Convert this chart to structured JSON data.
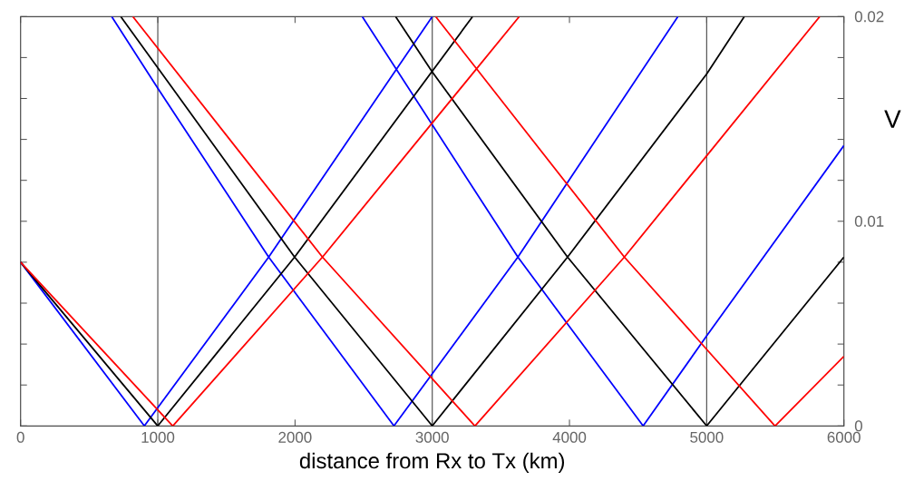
{
  "chart_data": {
    "type": "line",
    "xlabel": "distance from Rx to Tx (km)",
    "ylabel": "V",
    "xlim": [
      0,
      6000
    ],
    "ylim": [
      0,
      0.02
    ],
    "xticks": [
      0,
      1000,
      2000,
      3000,
      4000,
      5000,
      6000
    ],
    "yticks": [
      0,
      {
        "value": 0.002,
        "label": null
      },
      {
        "value": 0.004,
        "label": null
      },
      {
        "value": 0.006,
        "label": null
      },
      {
        "value": 0.008,
        "label": null
      },
      0.01,
      {
        "value": 0.012,
        "label": null
      },
      {
        "value": 0.014,
        "label": null
      },
      {
        "value": 0.016,
        "label": null
      },
      {
        "value": 0.018,
        "label": null
      },
      0.02
    ],
    "marker": "none",
    "ref_lines": [
      {
        "axis": "x",
        "value": 1000,
        "color": "#555555"
      },
      {
        "axis": "x",
        "value": 3000,
        "color": "#555555"
      },
      {
        "axis": "x",
        "value": 5000,
        "color": "#555555"
      }
    ],
    "series": [
      {
        "color": "#0000ff",
        "x": [
          0,
          902,
          1808,
          3000,
          null,
          664,
          1000,
          1808,
          2721,
          3624,
          4790,
          null,
          2490,
          3624,
          4537,
          5000,
          6000
        ],
        "values": [
          0.008,
          0,
          0.00825,
          0.02,
          null,
          0.02,
          0.0165,
          0.00825,
          0,
          0.00825,
          0.02,
          null,
          0.02,
          0.00825,
          0,
          0.0044,
          0.0137
        ]
      },
      {
        "color": "#000000",
        "x": [
          0,
          1000,
          1997,
          3294,
          null,
          730,
          1997,
          3000,
          3986,
          5000,
          5274,
          null,
          2733,
          3000,
          3986,
          5000,
          6000
        ],
        "values": [
          0.008,
          0,
          0.00825,
          0.02,
          null,
          0.02,
          0.00825,
          0,
          0.00825,
          0.0172,
          0.02,
          null,
          0.02,
          0.0173,
          0.00825,
          0,
          0.00825
        ]
      },
      {
        "color": "#ff0000",
        "x": [
          0,
          1109,
          2200,
          3634,
          null,
          818,
          2200,
          3311,
          4400,
          5824,
          null,
          3025,
          4400,
          5498,
          6000
        ],
        "values": [
          0.008,
          0,
          0.00825,
          0.02,
          null,
          0.02,
          0.00825,
          0,
          0.00825,
          0.02,
          null,
          0.02,
          0.00825,
          0,
          0.0034
        ]
      }
    ]
  }
}
